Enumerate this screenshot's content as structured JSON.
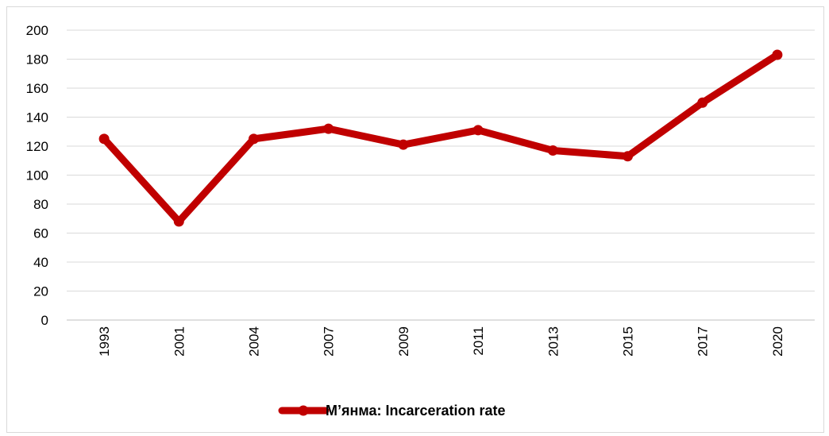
{
  "chart_data": {
    "type": "line",
    "title": "",
    "xlabel": "",
    "ylabel": "",
    "categories": [
      "1993",
      "2001",
      "2004",
      "2007",
      "2009",
      "2011",
      "2013",
      "2015",
      "2017",
      "2020"
    ],
    "series": [
      {
        "name": "М’янма: Incarceration rate",
        "values": [
          125,
          68,
          125,
          132,
          121,
          131,
          117,
          113,
          150,
          183
        ],
        "color": "#c00000"
      }
    ],
    "ylim": [
      0,
      200
    ],
    "yticks": [
      0,
      20,
      40,
      60,
      80,
      100,
      120,
      140,
      160,
      180,
      200
    ],
    "grid": true,
    "legend_position": "bottom",
    "x_tick_rotation": "vertical"
  }
}
